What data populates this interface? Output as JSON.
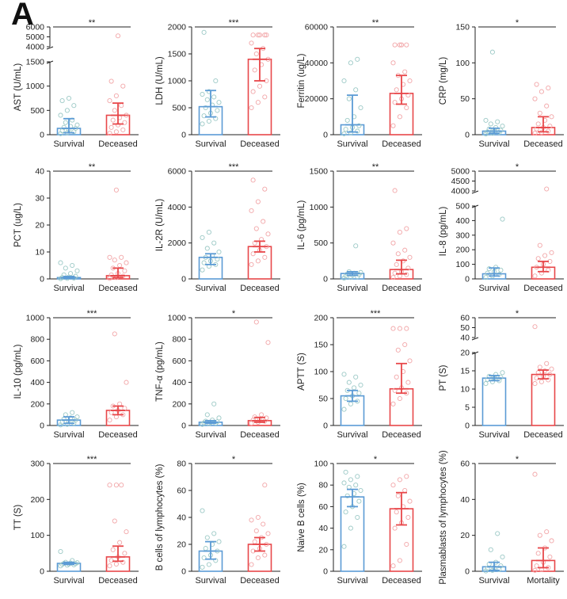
{
  "panel_label": "A",
  "colors": {
    "survival": "#5b9bd5",
    "deceased": "#e8474a",
    "survival_points": "#9cc9c6",
    "deceased_points": "#f2a6a8",
    "axis": "#222222"
  },
  "chart_data": [
    {
      "type": "bar",
      "ylabel": "AST (U/mL)",
      "categories": [
        "Survival",
        "Deceased"
      ],
      "values": [
        130,
        400
      ],
      "error_low": [
        40,
        220
      ],
      "error_high": [
        330,
        650
      ],
      "significance": "**",
      "axis": {
        "lower": [
          0,
          1500
        ],
        "lower_ticks": [
          0,
          500,
          1000,
          1500
        ],
        "upper": [
          4000,
          6000
        ],
        "upper_ticks": [
          4000,
          5000,
          6000
        ]
      },
      "points": [
        [
          20,
          40,
          60,
          80,
          100,
          130,
          150,
          170,
          200,
          250,
          300,
          400,
          500,
          600,
          700,
          750
        ],
        [
          30,
          60,
          100,
          150,
          200,
          250,
          300,
          350,
          400,
          500,
          600,
          700,
          800,
          1000,
          1100,
          5100
        ]
      ]
    },
    {
      "type": "bar",
      "ylabel": "LDH (U/mL)",
      "categories": [
        "Survival",
        "Deceased"
      ],
      "values": [
        520,
        1400
      ],
      "error_low": [
        330,
        1000
      ],
      "error_high": [
        820,
        1600
      ],
      "significance": "***",
      "axis": {
        "lower": [
          0,
          2000
        ],
        "lower_ticks": [
          0,
          500,
          1000,
          1500,
          2000
        ]
      },
      "points": [
        [
          200,
          250,
          300,
          350,
          400,
          450,
          500,
          550,
          600,
          650,
          700,
          750,
          800,
          1000,
          1900
        ],
        [
          500,
          600,
          700,
          800,
          900,
          1000,
          1200,
          1300,
          1400,
          1500,
          1600,
          1700,
          1850,
          1850,
          1850,
          1850,
          1850
        ]
      ]
    },
    {
      "type": "bar",
      "ylabel": "Ferritin (ug/L)",
      "categories": [
        "Survival",
        "Deceased"
      ],
      "values": [
        5500,
        23000
      ],
      "error_low": [
        1500,
        17000
      ],
      "error_high": [
        22000,
        33000
      ],
      "significance": "**",
      "axis": {
        "lower": [
          0,
          60000
        ],
        "lower_ticks": [
          0,
          20000,
          40000,
          60000
        ]
      },
      "points": [
        [
          500,
          1000,
          2000,
          3000,
          4000,
          5000,
          8000,
          10000,
          15000,
          20000,
          25000,
          30000,
          40000,
          42000
        ],
        [
          5000,
          10000,
          15000,
          18000,
          20000,
          22000,
          25000,
          28000,
          30000,
          33000,
          35000,
          40000,
          50000,
          50000,
          50000,
          50000
        ]
      ]
    },
    {
      "type": "bar",
      "ylabel": "CRP (mg/L)",
      "categories": [
        "Survival",
        "Deceased"
      ],
      "values": [
        5,
        10
      ],
      "error_low": [
        2,
        4
      ],
      "error_high": [
        9,
        25
      ],
      "significance": "*",
      "axis": {
        "lower": [
          0,
          150
        ],
        "lower_ticks": [
          0,
          50,
          100,
          150
        ]
      },
      "points": [
        [
          1,
          2,
          3,
          4,
          5,
          6,
          8,
          10,
          12,
          15,
          18,
          20,
          115
        ],
        [
          2,
          3,
          5,
          8,
          10,
          12,
          15,
          20,
          25,
          30,
          40,
          50,
          60,
          65,
          70
        ]
      ]
    },
    {
      "type": "bar",
      "ylabel": "PCT (ug/L)",
      "categories": [
        "Survival",
        "Deceased"
      ],
      "values": [
        0.5,
        1.2
      ],
      "error_low": [
        0.2,
        0.5
      ],
      "error_high": [
        0.9,
        4
      ],
      "significance": "**",
      "axis": {
        "lower": [
          0,
          40
        ],
        "lower_ticks": [
          0,
          10,
          20,
          30,
          40
        ]
      },
      "points": [
        [
          0.1,
          0.2,
          0.3,
          0.5,
          0.7,
          1,
          1.5,
          2,
          3,
          4,
          5,
          6
        ],
        [
          0.2,
          0.5,
          1,
          1.5,
          2,
          3,
          4,
          5,
          6,
          7,
          8,
          8,
          33
        ]
      ]
    },
    {
      "type": "bar",
      "ylabel": "IL-2R (U/mL)",
      "categories": [
        "Survival",
        "Deceased"
      ],
      "values": [
        1200,
        1800
      ],
      "error_low": [
        800,
        1500
      ],
      "error_high": [
        1400,
        2100
      ],
      "significance": "***",
      "axis": {
        "lower": [
          0,
          6000
        ],
        "lower_ticks": [
          0,
          2000,
          4000,
          6000
        ]
      },
      "points": [
        [
          500,
          700,
          800,
          900,
          1000,
          1100,
          1200,
          1300,
          1500,
          1700,
          2000,
          2300,
          2600
        ],
        [
          800,
          1000,
          1200,
          1400,
          1600,
          1800,
          2000,
          2200,
          2500,
          2800,
          3200,
          3800,
          4300,
          5000,
          5500
        ]
      ]
    },
    {
      "type": "bar",
      "ylabel": "IL-6 (pg/mL)",
      "categories": [
        "Survival",
        "Deceased"
      ],
      "values": [
        75,
        130
      ],
      "error_low": [
        50,
        70
      ],
      "error_high": [
        100,
        260
      ],
      "significance": "**",
      "axis": {
        "lower": [
          0,
          1500
        ],
        "lower_ticks": [
          0,
          500,
          1000,
          1500
        ]
      },
      "points": [
        [
          10,
          20,
          30,
          40,
          50,
          60,
          70,
          80,
          90,
          100,
          460
        ],
        [
          20,
          40,
          60,
          80,
          100,
          150,
          200,
          250,
          300,
          350,
          400,
          500,
          650,
          700,
          1230
        ]
      ]
    },
    {
      "type": "bar",
      "ylabel": "IL-8 (pg/mL)",
      "categories": [
        "Survival",
        "Deceased"
      ],
      "values": [
        35,
        80
      ],
      "error_low": [
        20,
        50
      ],
      "error_high": [
        75,
        120
      ],
      "significance": "*",
      "axis": {
        "lower": [
          0,
          500
        ],
        "lower_ticks": [
          0,
          100,
          200,
          300,
          400,
          500
        ],
        "upper": [
          4000,
          5000
        ],
        "upper_ticks": [
          4000,
          4500,
          5000
        ]
      },
      "points": [
        [
          10,
          20,
          30,
          40,
          50,
          60,
          70,
          80,
          410
        ],
        [
          20,
          40,
          60,
          80,
          100,
          120,
          140,
          160,
          180,
          230,
          4100
        ]
      ]
    },
    {
      "type": "bar",
      "ylabel": "IL-10 (pg/mL)",
      "categories": [
        "Survival",
        "Deceased"
      ],
      "values": [
        50,
        140
      ],
      "error_low": [
        20,
        100
      ],
      "error_high": [
        80,
        180
      ],
      "significance": "***",
      "axis": {
        "lower": [
          0,
          1000
        ],
        "lower_ticks": [
          0,
          200,
          400,
          600,
          800,
          1000
        ]
      },
      "points": [
        [
          5,
          10,
          20,
          30,
          40,
          50,
          60,
          70,
          80,
          100,
          120
        ],
        [
          50,
          80,
          100,
          120,
          140,
          160,
          180,
          200,
          400,
          850
        ]
      ]
    },
    {
      "type": "bar",
      "ylabel": "TNF-α (pg/mL)",
      "categories": [
        "Survival",
        "Deceased"
      ],
      "values": [
        30,
        45
      ],
      "error_low": [
        20,
        30
      ],
      "error_high": [
        45,
        75
      ],
      "significance": "*",
      "axis": {
        "lower": [
          0,
          1000
        ],
        "lower_ticks": [
          0,
          200,
          400,
          600,
          800,
          1000
        ]
      },
      "points": [
        [
          10,
          15,
          20,
          25,
          30,
          35,
          40,
          50,
          70,
          100,
          200
        ],
        [
          20,
          30,
          40,
          50,
          60,
          70,
          80,
          100,
          770,
          960
        ]
      ]
    },
    {
      "type": "bar",
      "ylabel": "APTT (S)",
      "categories": [
        "Survival",
        "Deceased"
      ],
      "values": [
        55,
        68
      ],
      "error_low": [
        45,
        60
      ],
      "error_high": [
        65,
        115
      ],
      "significance": "***",
      "axis": {
        "lower": [
          0,
          200
        ],
        "lower_ticks": [
          0,
          50,
          100,
          150,
          200
        ]
      },
      "points": [
        [
          30,
          40,
          45,
          50,
          55,
          60,
          65,
          70,
          75,
          80,
          90,
          95
        ],
        [
          40,
          50,
          60,
          65,
          70,
          80,
          90,
          100,
          120,
          140,
          150,
          180,
          180,
          180
        ]
      ]
    },
    {
      "type": "bar",
      "ylabel": "PT (S)",
      "categories": [
        "Survival",
        "Deceased"
      ],
      "values": [
        13,
        14
      ],
      "error_low": [
        12.3,
        12.8
      ],
      "error_high": [
        13.7,
        15.2
      ],
      "significance": "*",
      "axis": {
        "lower": [
          0,
          20
        ],
        "lower_ticks": [
          0,
          5,
          10,
          15,
          20
        ],
        "upper": [
          40,
          60
        ],
        "upper_ticks": [
          40,
          50,
          60
        ]
      },
      "points": [
        [
          11.5,
          12,
          12.3,
          12.6,
          13,
          13.2,
          13.5,
          14,
          14.5
        ],
        [
          11.5,
          12,
          12.5,
          13,
          13.5,
          14,
          14.5,
          15,
          15.5,
          16,
          17,
          51
        ]
      ]
    },
    {
      "type": "bar",
      "ylabel": "TT (S)",
      "categories": [
        "Survival",
        "Deceased"
      ],
      "values": [
        22,
        40
      ],
      "error_low": [
        19,
        28
      ],
      "error_high": [
        25,
        70
      ],
      "significance": "***",
      "axis": {
        "lower": [
          0,
          300
        ],
        "lower_ticks": [
          0,
          100,
          200,
          300
        ]
      },
      "points": [
        [
          15,
          17,
          18,
          19,
          20,
          21,
          22,
          23,
          24,
          25,
          30,
          55
        ],
        [
          15,
          20,
          25,
          30,
          40,
          50,
          60,
          80,
          110,
          140,
          240,
          240,
          240
        ]
      ]
    },
    {
      "type": "bar",
      "ylabel": "B cells of lymphocytes (%)",
      "categories": [
        "Survival",
        "Deceased"
      ],
      "values": [
        15,
        20
      ],
      "error_low": [
        9,
        15
      ],
      "error_high": [
        22,
        25
      ],
      "significance": "*",
      "axis": {
        "lower": [
          0,
          80
        ],
        "lower_ticks": [
          0,
          20,
          40,
          60,
          80
        ]
      },
      "points": [
        [
          3,
          5,
          8,
          10,
          12,
          15,
          17,
          20,
          22,
          25,
          28,
          45
        ],
        [
          5,
          10,
          12,
          15,
          17,
          20,
          22,
          25,
          28,
          30,
          35,
          38,
          40,
          64
        ]
      ]
    },
    {
      "type": "bar",
      "ylabel": "Naive B cells (%)",
      "categories": [
        "Survival",
        "Deceased"
      ],
      "values": [
        69,
        58
      ],
      "error_low": [
        60,
        43
      ],
      "error_high": [
        76,
        73
      ],
      "significance": "*",
      "axis": {
        "lower": [
          0,
          100
        ],
        "lower_ticks": [
          0,
          20,
          40,
          60,
          80,
          100
        ]
      },
      "points": [
        [
          23,
          40,
          50,
          55,
          60,
          65,
          70,
          72,
          75,
          78,
          80,
          82,
          85,
          88,
          92
        ],
        [
          5,
          10,
          25,
          40,
          45,
          50,
          55,
          60,
          65,
          70,
          75,
          80,
          85,
          88
        ]
      ]
    },
    {
      "type": "bar",
      "ylabel": "Plasmablasts of lymphocytes (%)",
      "categories": [
        "Survival",
        "Mortality"
      ],
      "values": [
        2.5,
        6
      ],
      "error_low": [
        0.5,
        2
      ],
      "error_high": [
        5,
        13
      ],
      "significance": "*",
      "axis": {
        "lower": [
          0,
          60
        ],
        "lower_ticks": [
          0,
          20,
          40,
          60
        ]
      },
      "points": [
        [
          0.2,
          0.5,
          1,
          1.5,
          2,
          3,
          4,
          5,
          8,
          12,
          21
        ],
        [
          0.5,
          1,
          2,
          3,
          5,
          8,
          10,
          13,
          17,
          20,
          22,
          54
        ]
      ]
    }
  ]
}
